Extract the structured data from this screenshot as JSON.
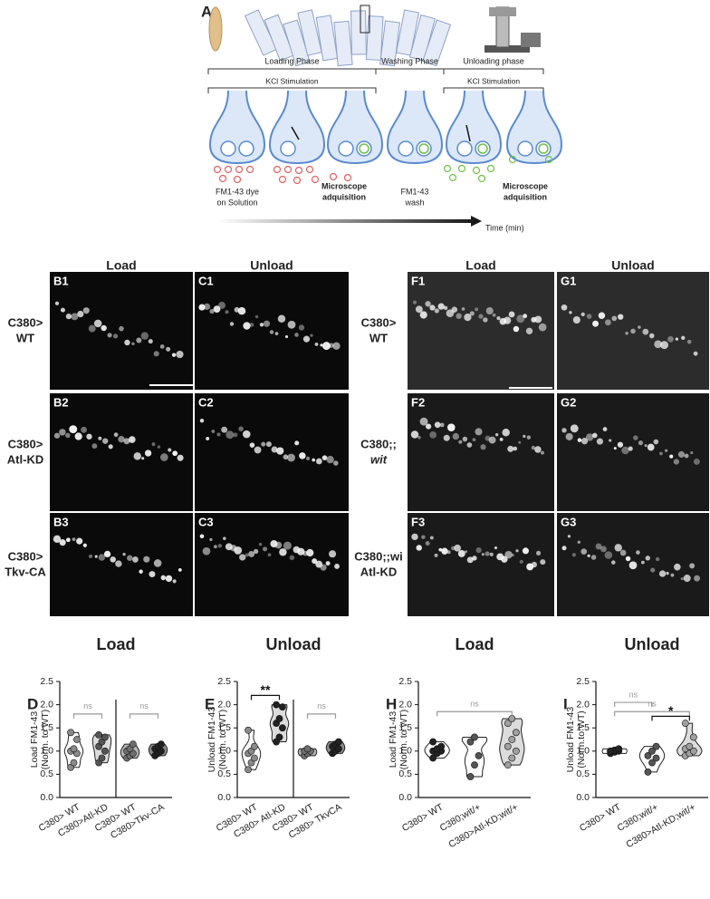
{
  "schematic": {
    "panel": "A",
    "phases": [
      "Loading Phase",
      "Washing Phase",
      "Unloading phase"
    ],
    "stimulation": [
      "KCl Stimulation",
      "KCl Stimulation"
    ],
    "notes": [
      [
        "FM1-43 dye",
        "on Solution"
      ],
      [
        "Microscope",
        "adquisition"
      ],
      [
        "FM1-43",
        "wash"
      ],
      [
        "Microscope",
        "adquisition"
      ]
    ],
    "time_label": "Time (min)"
  },
  "micrographs": [
    {
      "columns": [
        "Load",
        "Unload"
      ],
      "rows": [
        {
          "label": [
            "C380>",
            "WT"
          ],
          "panels": [
            "B1",
            "C1"
          ]
        },
        {
          "label": [
            "C380>",
            "Atl-KD"
          ],
          "panels": [
            "B2",
            "C2"
          ]
        },
        {
          "label": [
            "C380>",
            "Tkv-CA"
          ],
          "panels": [
            "B3",
            "C3"
          ]
        }
      ]
    },
    {
      "columns": [
        "Load",
        "Unload"
      ],
      "rows": [
        {
          "label": [
            "C380>",
            "WT"
          ],
          "panels": [
            "F1",
            "G1"
          ]
        },
        {
          "label": [
            "C380;;",
            "wit"
          ],
          "panels": [
            "F2",
            "G2"
          ]
        },
        {
          "label": [
            "C380;;wi",
            "Atl-KD"
          ],
          "panels": [
            "F3",
            "G3"
          ]
        }
      ]
    }
  ],
  "chart_data": [
    {
      "type": "violin",
      "panel": "D",
      "title": "Load",
      "ylabel": [
        "Load FM1-43",
        "(Norm. to WT)"
      ],
      "categories": [
        "C380> WT",
        "C380>Atl-KD",
        "C380> WT",
        "C380>Tkv-CA"
      ],
      "points": [
        [
          0.65,
          0.75,
          0.95,
          1.0,
          1.05,
          1.25,
          1.4
        ],
        [
          0.75,
          0.85,
          1.0,
          1.1,
          1.2,
          1.3,
          1.35
        ],
        [
          0.85,
          0.9,
          0.95,
          1.0,
          1.05,
          1.15
        ],
        [
          0.9,
          0.95,
          1.0,
          1.05,
          1.1,
          1.15
        ]
      ],
      "colors": [
        "#ffffff",
        "#dcdcdc",
        "#b4b4b4",
        "#8c8c8c"
      ],
      "dot_colors": [
        "#8a8a8a",
        "#555555",
        "#6e6e6e",
        "#222222"
      ],
      "annotations": [
        "ns",
        "ns"
      ],
      "divider": true,
      "ylim": [
        0,
        2.5
      ],
      "yticks": [
        {
          "value": 0,
          "label": "0.0"
        },
        0.5,
        {
          "value": 1,
          "label": "1.0"
        },
        1.5,
        {
          "value": 2,
          "label": "2.0"
        },
        2.5
      ]
    },
    {
      "type": "violin",
      "panel": "E",
      "title": "Unload",
      "ylabel": [
        "Unload FM1-43",
        "(Norm. to WT)"
      ],
      "categories": [
        "C380> WT",
        "C380> Atl-KD",
        "C380> WT",
        "C380> TkvCA"
      ],
      "points": [
        [
          0.6,
          0.75,
          0.85,
          0.95,
          1.0,
          1.1,
          1.45
        ],
        [
          1.2,
          1.3,
          1.5,
          1.6,
          1.7,
          1.95,
          2.0
        ],
        [
          0.9,
          0.95,
          1.0,
          1.0,
          1.05
        ],
        [
          0.95,
          1.0,
          1.05,
          1.1,
          1.15,
          1.2
        ]
      ],
      "colors": [
        "#ffffff",
        "#dcdcdc",
        "#b4b4b4",
        "#8c8c8c"
      ],
      "dot_colors": [
        "#8a8a8a",
        "#222222",
        "#6e6e6e",
        "#222222"
      ],
      "annotations": [
        "**",
        "ns"
      ],
      "divider": true,
      "ylim": [
        0,
        2.5
      ],
      "yticks": [
        {
          "value": 0,
          "label": "0.0"
        },
        0.5,
        {
          "value": 1,
          "label": "1.0"
        },
        1.5,
        {
          "value": 2,
          "label": "2.0"
        },
        2.5
      ]
    },
    {
      "type": "violin",
      "panel": "H",
      "title": "Load",
      "ylabel": [
        "Load FM1-43",
        "(Norm. to WT)"
      ],
      "categories": [
        "C380> WT",
        "C380;wit/+",
        "C380>Atl-KD;wit/+"
      ],
      "points": [
        [
          0.85,
          0.95,
          1.0,
          1.0,
          1.05,
          1.1,
          1.2
        ],
        [
          0.45,
          0.7,
          0.9,
          1.2,
          1.3
        ],
        [
          0.7,
          0.85,
          1.0,
          1.1,
          1.25,
          1.4,
          1.6,
          1.7
        ]
      ],
      "colors": [
        "#ffffff",
        "#ffffff",
        "#dcdcdc"
      ],
      "dot_colors": [
        "#222222",
        "#555555",
        "#a0a0a0"
      ],
      "annotations": [
        "ns"
      ],
      "divider": false,
      "ylim": [
        0,
        2.5
      ],
      "yticks": [
        {
          "value": 0,
          "label": "0.0"
        },
        0.5,
        {
          "value": 1,
          "label": "1.0"
        },
        1.5,
        {
          "value": 2,
          "label": "2.0"
        },
        2.5
      ]
    },
    {
      "type": "violin",
      "panel": "I",
      "title": "Unload",
      "ylabel": [
        "Unload FM1-43",
        "(Norm.to WT)"
      ],
      "categories": [
        "C380> WT",
        "C380;wit/+",
        "C380>Atl-KD;wit/+"
      ],
      "points": [
        [
          0.95,
          0.98,
          1.0,
          1.0,
          1.02,
          1.05,
          1.0
        ],
        [
          0.55,
          0.75,
          0.85,
          0.9,
          1.0,
          1.1
        ],
        [
          0.9,
          0.95,
          1.0,
          1.05,
          1.1,
          1.3,
          1.6
        ]
      ],
      "colors": [
        "#ffffff",
        "#ffffff",
        "#dcdcdc"
      ],
      "dot_colors": [
        "#222222",
        "#555555",
        "#a0a0a0"
      ],
      "annotations": [
        "ns",
        "ns",
        "*"
      ],
      "divider": false,
      "ylim": [
        0,
        2.5
      ],
      "yticks": [
        {
          "value": 0,
          "label": "0.0"
        },
        0.5,
        {
          "value": 1,
          "label": "1.0"
        },
        1.5,
        {
          "value": 2,
          "label": "2.0"
        },
        2.5
      ]
    }
  ]
}
